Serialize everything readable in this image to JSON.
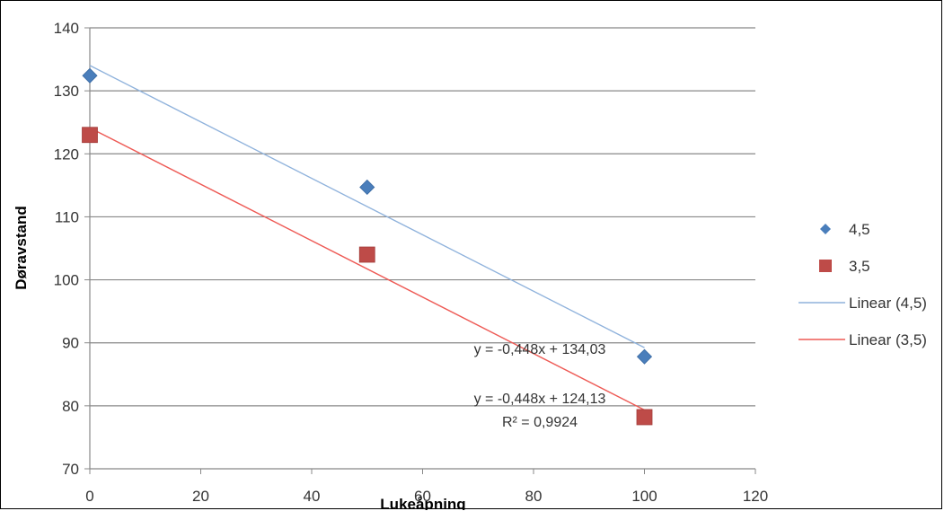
{
  "chart_data": {
    "type": "scatter",
    "xlabel": "Lukeåpning",
    "ylabel": "Døravstand",
    "xlim": [
      0,
      120
    ],
    "ylim": [
      70,
      140
    ],
    "xticks": [
      0,
      20,
      40,
      60,
      80,
      100,
      120
    ],
    "yticks": [
      70,
      80,
      90,
      100,
      110,
      120,
      130,
      140
    ],
    "grid": "horizontal",
    "legend_position": "right",
    "series": [
      {
        "name": "4,5",
        "marker": "diamond",
        "color": "#4a7ebb",
        "x": [
          0,
          50,
          100
        ],
        "y": [
          132.4,
          114.7,
          87.8
        ]
      },
      {
        "name": "3,5",
        "marker": "square",
        "color": "#be4b48",
        "x": [
          0,
          50,
          100
        ],
        "y": [
          123.0,
          104.0,
          78.2
        ]
      }
    ],
    "trendlines": [
      {
        "name": "Linear (4,5)",
        "color": "#8fb2dc",
        "slope": -0.448,
        "intercept": 134.03,
        "x_range": [
          0,
          100
        ],
        "equation": "y = -0,448x + 134,03"
      },
      {
        "name": "Linear (3,5)",
        "color": "#ee5a55",
        "slope": -0.448,
        "intercept": 124.13,
        "x_range": [
          0,
          100
        ],
        "equation": "y = -0,448x + 124,13",
        "r_squared": "R² = 0,9924"
      }
    ]
  }
}
